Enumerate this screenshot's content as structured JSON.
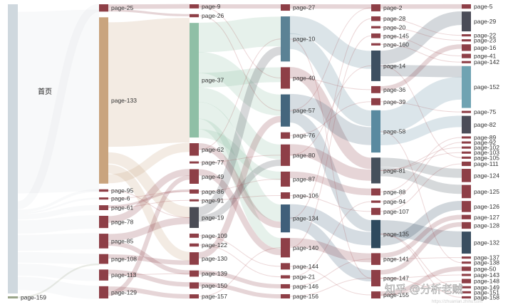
{
  "chart_data": {
    "type": "sankey",
    "title": "",
    "root": {
      "id": "首页",
      "label": "首页",
      "value": 100,
      "color": "#cfd8de"
    },
    "columns": [
      [
        {
          "id": "首页",
          "label": "首页",
          "value": 100
        },
        {
          "id": "page-159",
          "label": "page-159",
          "value": 0.4
        }
      ],
      [
        {
          "id": "page-25",
          "label": "page-25",
          "value": 3
        },
        {
          "id": "page-133",
          "label": "page-133",
          "value": 68
        },
        {
          "id": "page-95",
          "label": "page-95",
          "value": 1
        },
        {
          "id": "page-6",
          "label": "page-6",
          "value": 0.5
        },
        {
          "id": "page-61",
          "label": "page-61",
          "value": 2
        },
        {
          "id": "page-78",
          "label": "page-78",
          "value": 5
        },
        {
          "id": "page-85",
          "label": "page-85",
          "value": 6
        },
        {
          "id": "page-108",
          "label": "page-108",
          "value": 4
        },
        {
          "id": "page-113",
          "label": "page-113",
          "value": 4.5
        },
        {
          "id": "page-129",
          "label": "page-129",
          "value": 5
        }
      ],
      [
        {
          "id": "page-9",
          "label": "page-9",
          "value": 2
        },
        {
          "id": "page-26",
          "label": "page-26",
          "value": 1.5
        },
        {
          "id": "page-37",
          "label": "page-37",
          "value": 55
        },
        {
          "id": "page-62",
          "label": "page-62",
          "value": 6
        },
        {
          "id": "page-77",
          "label": "page-77",
          "value": 1
        },
        {
          "id": "page-49",
          "label": "page-49",
          "value": 7
        },
        {
          "id": "page-86",
          "label": "page-86",
          "value": 2
        },
        {
          "id": "page-91",
          "label": "page-91",
          "value": 0.5
        },
        {
          "id": "page-19",
          "label": "page-19",
          "value": 10
        },
        {
          "id": "page-109",
          "label": "page-109",
          "value": 2
        },
        {
          "id": "page-122",
          "label": "page-122",
          "value": 1.5
        },
        {
          "id": "page-130",
          "label": "page-130",
          "value": 6
        },
        {
          "id": "page-139",
          "label": "page-139",
          "value": 3
        },
        {
          "id": "page-150",
          "label": "page-150",
          "value": 3
        },
        {
          "id": "page-157",
          "label": "page-157",
          "value": 2
        }
      ],
      [
        {
          "id": "page-27",
          "label": "page-27",
          "value": 3
        },
        {
          "id": "page-10",
          "label": "page-10",
          "value": 21
        },
        {
          "id": "page-40",
          "label": "page-40",
          "value": 10
        },
        {
          "id": "page-57",
          "label": "page-57",
          "value": 15
        },
        {
          "id": "page-76",
          "label": "page-76",
          "value": 3
        },
        {
          "id": "page-80",
          "label": "page-80",
          "value": 10
        },
        {
          "id": "page-87",
          "label": "page-87",
          "value": 7
        },
        {
          "id": "page-106",
          "label": "page-106",
          "value": 3
        },
        {
          "id": "page-134",
          "label": "page-134",
          "value": 13
        },
        {
          "id": "page-140",
          "label": "page-140",
          "value": 9
        },
        {
          "id": "page-144",
          "label": "page-144",
          "value": 3
        },
        {
          "id": "page-21",
          "label": "page-21",
          "value": 1.5
        },
        {
          "id": "page-146",
          "label": "page-146",
          "value": 2
        },
        {
          "id": "page-156",
          "label": "page-156",
          "value": 2
        }
      ],
      [
        {
          "id": "page-2",
          "label": "page-2",
          "value": 3
        },
        {
          "id": "page-28",
          "label": "page-28",
          "value": 2
        },
        {
          "id": "page-20",
          "label": "page-20",
          "value": 1
        },
        {
          "id": "page-145",
          "label": "page-145",
          "value": 2
        },
        {
          "id": "page-160",
          "label": "page-160",
          "value": 1
        },
        {
          "id": "page-14",
          "label": "page-14",
          "value": 13
        },
        {
          "id": "page-36",
          "label": "page-36",
          "value": 3
        },
        {
          "id": "page-39",
          "label": "page-39",
          "value": 3
        },
        {
          "id": "page-58",
          "label": "page-58",
          "value": 18
        },
        {
          "id": "page-81",
          "label": "page-81",
          "value": 11
        },
        {
          "id": "page-88",
          "label": "page-88",
          "value": 3
        },
        {
          "id": "page-94",
          "label": "page-94",
          "value": 1
        },
        {
          "id": "page-107",
          "label": "page-107",
          "value": 3
        },
        {
          "id": "page-135",
          "label": "page-135",
          "value": 12
        },
        {
          "id": "page-141",
          "label": "page-141",
          "value": 5
        },
        {
          "id": "page-147",
          "label": "page-147",
          "value": 7
        },
        {
          "id": "page-155",
          "label": "page-155",
          "value": 3
        }
      ],
      [
        {
          "id": "page-5",
          "label": "page-5",
          "value": 2
        },
        {
          "id": "page-29",
          "label": "page-29",
          "value": 9
        },
        {
          "id": "page-22",
          "label": "page-22",
          "value": 1
        },
        {
          "id": "page-23",
          "label": "page-23",
          "value": 1
        },
        {
          "id": "page-16",
          "label": "page-16",
          "value": 3
        },
        {
          "id": "page-41",
          "label": "page-41",
          "value": 2
        },
        {
          "id": "page-142",
          "label": "page-142",
          "value": 1
        },
        {
          "id": "page-152",
          "label": "page-152",
          "value": 19
        },
        {
          "id": "page-75",
          "label": "page-75",
          "value": 1
        },
        {
          "id": "page-82",
          "label": "page-82",
          "value": 8
        },
        {
          "id": "page-89",
          "label": "page-89",
          "value": 1
        },
        {
          "id": "page-92",
          "label": "page-92",
          "value": 1
        },
        {
          "id": "page-102",
          "label": "page-102",
          "value": 1
        },
        {
          "id": "page-103",
          "label": "page-103",
          "value": 1
        },
        {
          "id": "page-105",
          "label": "page-105",
          "value": 1
        },
        {
          "id": "page-111",
          "label": "page-111",
          "value": 2
        },
        {
          "id": "page-124",
          "label": "page-124",
          "value": 6
        },
        {
          "id": "page-125",
          "label": "page-125",
          "value": 6
        },
        {
          "id": "page-126",
          "label": "page-126",
          "value": 5
        },
        {
          "id": "page-127",
          "label": "page-127",
          "value": 2
        },
        {
          "id": "page-128",
          "label": "page-128",
          "value": 3
        },
        {
          "id": "page-132",
          "label": "page-132",
          "value": 10
        },
        {
          "id": "page-137",
          "label": "page-137",
          "value": 1
        },
        {
          "id": "page-138",
          "label": "page-138",
          "value": 1
        },
        {
          "id": "page-50",
          "label": "page-50",
          "value": 2
        },
        {
          "id": "page-143",
          "label": "page-143",
          "value": 1
        },
        {
          "id": "page-148",
          "label": "page-148",
          "value": 2
        },
        {
          "id": "page-149",
          "label": "page-149",
          "value": 1
        },
        {
          "id": "page-151",
          "label": "page-151",
          "value": 1
        },
        {
          "id": "page-158",
          "label": "page-158",
          "value": 1
        }
      ]
    ],
    "links": [
      {
        "source": "首页",
        "target": "page-133",
        "value": 68
      },
      {
        "source": "首页",
        "target": "page-25",
        "value": 3
      },
      {
        "source": "首页",
        "target": "page-95",
        "value": 1
      },
      {
        "source": "首页",
        "target": "page-6",
        "value": 0.5
      },
      {
        "source": "首页",
        "target": "page-61",
        "value": 2
      },
      {
        "source": "首页",
        "target": "page-78",
        "value": 5
      },
      {
        "source": "首页",
        "target": "page-85",
        "value": 6
      },
      {
        "source": "首页",
        "target": "page-108",
        "value": 4
      },
      {
        "source": "首页",
        "target": "page-113",
        "value": 4.5
      },
      {
        "source": "首页",
        "target": "page-129",
        "value": 5
      },
      {
        "source": "page-159",
        "target": "page-108",
        "value": 0.4
      },
      {
        "source": "page-133",
        "target": "page-37",
        "value": 55
      },
      {
        "source": "page-133",
        "target": "page-19",
        "value": 5
      },
      {
        "source": "page-133",
        "target": "page-130",
        "value": 4
      },
      {
        "source": "page-133",
        "target": "page-62",
        "value": 4
      },
      {
        "source": "page-25",
        "target": "page-9",
        "value": 2
      },
      {
        "source": "page-25",
        "target": "page-26",
        "value": 1
      },
      {
        "source": "page-78",
        "target": "page-49",
        "value": 3
      },
      {
        "source": "page-85",
        "target": "page-19",
        "value": 3
      },
      {
        "source": "page-85",
        "target": "page-139",
        "value": 2
      },
      {
        "source": "page-108",
        "target": "page-130",
        "value": 2
      },
      {
        "source": "page-113",
        "target": "page-150",
        "value": 2
      },
      {
        "source": "page-129",
        "target": "page-157",
        "value": 2
      },
      {
        "source": "page-129",
        "target": "page-49",
        "value": 2
      },
      {
        "source": "page-61",
        "target": "page-86",
        "value": 1
      },
      {
        "source": "page-37",
        "target": "page-10",
        "value": 14
      },
      {
        "source": "page-37",
        "target": "page-57",
        "value": 10
      },
      {
        "source": "page-37",
        "target": "page-40",
        "value": 7
      },
      {
        "source": "page-37",
        "target": "page-80",
        "value": 7
      },
      {
        "source": "page-37",
        "target": "page-134",
        "value": 8
      },
      {
        "source": "page-37",
        "target": "page-140",
        "value": 5
      },
      {
        "source": "page-37",
        "target": "page-87",
        "value": 4
      },
      {
        "source": "page-62",
        "target": "page-134",
        "value": 3
      },
      {
        "source": "page-49",
        "target": "page-140",
        "value": 3
      },
      {
        "source": "page-19",
        "target": "page-10",
        "value": 4
      },
      {
        "source": "page-19",
        "target": "page-80",
        "value": 3
      },
      {
        "source": "page-130",
        "target": "page-57",
        "value": 3
      },
      {
        "source": "page-139",
        "target": "page-146",
        "value": 2
      },
      {
        "source": "page-150",
        "target": "page-156",
        "value": 2
      },
      {
        "source": "page-9",
        "target": "page-27",
        "value": 2
      },
      {
        "source": "page-10",
        "target": "page-14",
        "value": 8
      },
      {
        "source": "page-10",
        "target": "page-58",
        "value": 7
      },
      {
        "source": "page-40",
        "target": "page-81",
        "value": 5
      },
      {
        "source": "page-57",
        "target": "page-58",
        "value": 8
      },
      {
        "source": "page-57",
        "target": "page-135",
        "value": 5
      },
      {
        "source": "page-80",
        "target": "page-81",
        "value": 5
      },
      {
        "source": "page-134",
        "target": "page-135",
        "value": 6
      },
      {
        "source": "page-134",
        "target": "page-147",
        "value": 5
      },
      {
        "source": "page-140",
        "target": "page-141",
        "value": 4
      },
      {
        "source": "page-87",
        "target": "page-88",
        "value": 3
      },
      {
        "source": "page-27",
        "target": "page-2",
        "value": 2
      },
      {
        "source": "page-14",
        "target": "page-29",
        "value": 6
      },
      {
        "source": "page-14",
        "target": "page-152",
        "value": 5
      },
      {
        "source": "page-58",
        "target": "page-152",
        "value": 10
      },
      {
        "source": "page-58",
        "target": "page-82",
        "value": 5
      },
      {
        "source": "page-81",
        "target": "page-124",
        "value": 4
      },
      {
        "source": "page-81",
        "target": "page-125",
        "value": 4
      },
      {
        "source": "page-135",
        "target": "page-132",
        "value": 7
      },
      {
        "source": "page-135",
        "target": "page-126",
        "value": 4
      },
      {
        "source": "page-147",
        "target": "page-128",
        "value": 2
      },
      {
        "source": "page-141",
        "target": "page-127",
        "value": 2
      },
      {
        "source": "page-2",
        "target": "page-5",
        "value": 2
      },
      {
        "source": "page-36",
        "target": "page-16",
        "value": 2
      },
      {
        "source": "page-155",
        "target": "page-50",
        "value": 2
      }
    ],
    "node_colors": {
      "首页": "#cfd8de",
      "page-133": "#c9a47e",
      "page-37": "#8fbfa6",
      "page-10": "#5b8295",
      "page-57": "#44667d",
      "page-134": "#3f5f7a",
      "page-14": "#3d4f61",
      "page-58": "#5a8aa0",
      "page-81": "#46505c",
      "page-135": "#2f4a5e",
      "page-152": "#6fa3b2",
      "page-132": "#3a4e60",
      "page-29": "#4a4c57",
      "page-82": "#4b4d58",
      "page-19": "#4b4c55",
      "page-159": "#9aa58a",
      "default": "#8e3f47"
    },
    "link_style": "semi-transparent gray curves, tinted by source node color"
  },
  "watermark": {
    "text": "知乎 @分析老贼",
    "subtext": "https://zhuanlan.zhihu.com"
  }
}
